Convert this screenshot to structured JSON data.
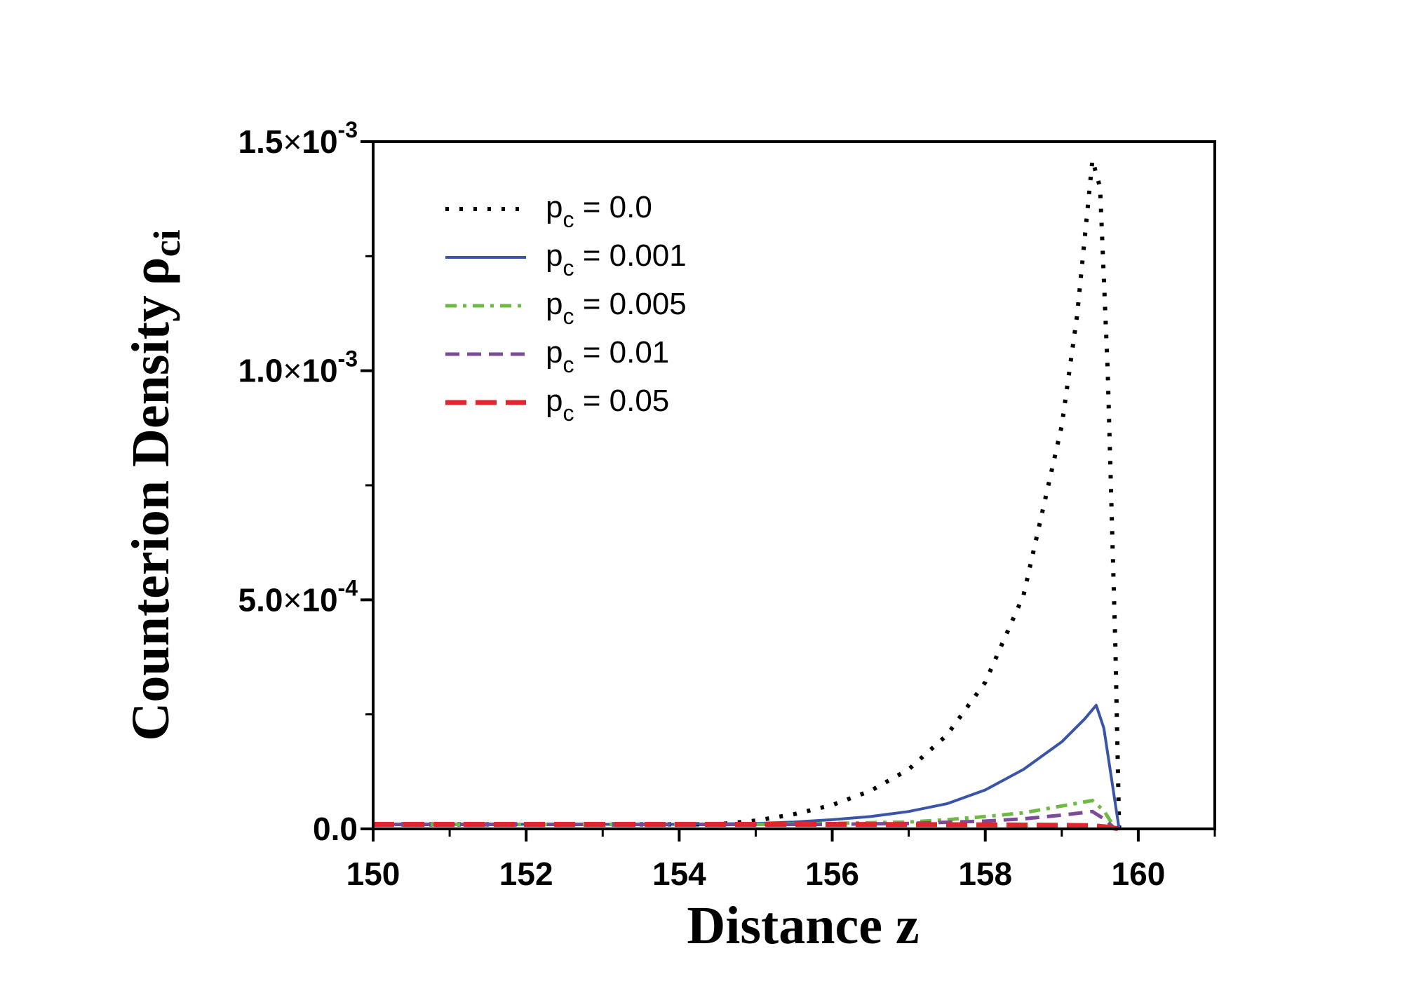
{
  "chart_data": {
    "type": "line",
    "xlabel": "Distance z",
    "ylabel": "Counterion Density",
    "ylabel_symbol": "ρ",
    "ylabel_sub": "ci",
    "xlim": [
      150,
      161
    ],
    "ylim": [
      0,
      0.0015
    ],
    "x_ticks": [
      150,
      152,
      154,
      156,
      158,
      160
    ],
    "x_tick_labels": [
      "150",
      "152",
      "154",
      "156",
      "158",
      "160"
    ],
    "y_ticks": [
      0,
      0.0005,
      0.001,
      0.0015
    ],
    "y_tick_labels": [
      {
        "mantissa": "0.0",
        "times": "",
        "base": "",
        "exp": ""
      },
      {
        "mantissa": "5.0",
        "times": "×",
        "base": "10",
        "exp": "-4"
      },
      {
        "mantissa": "1.0",
        "times": "×",
        "base": "10",
        "exp": "-3"
      },
      {
        "mantissa": "1.5",
        "times": "×",
        "base": "10",
        "exp": "-3"
      }
    ],
    "y_minor_step": 0.00025,
    "x_minor_step": 1,
    "grid": false,
    "legend_position": "top-left",
    "series": [
      {
        "name": "p_c = 0.0",
        "label_main": "p",
        "label_sub": "c",
        "label_rest": " = 0.0",
        "color": "#000000",
        "style": "dotted",
        "x": [
          150,
          151,
          152,
          153,
          154,
          154.5,
          155,
          155.5,
          156,
          156.5,
          157,
          157.5,
          158,
          158.5,
          159,
          159.2,
          159.4,
          159.5,
          159.6,
          159.7,
          159.75
        ],
        "y": [
          1e-05,
          1e-05,
          1e-05,
          1e-05,
          1e-05,
          1e-05,
          1.8e-05,
          3.2e-05,
          5.2e-05,
          8.3e-05,
          0.00013,
          0.000205,
          0.00032,
          0.00051,
          0.00088,
          0.00112,
          0.00146,
          0.0014,
          0.001,
          0.0004,
          0.0
        ]
      },
      {
        "name": "p_c = 0.001",
        "label_main": "p",
        "label_sub": "c",
        "label_rest": " = 0.001",
        "color": "#3a55a8",
        "style": "solid",
        "x": [
          150,
          151,
          152,
          153,
          154,
          155,
          155.5,
          156,
          156.5,
          157,
          157.5,
          158,
          158.5,
          159,
          159.3,
          159.45,
          159.55,
          159.65,
          159.75
        ],
        "y": [
          1e-05,
          1e-05,
          1e-05,
          1e-05,
          1e-05,
          1.2e-05,
          1.5e-05,
          2e-05,
          2.7e-05,
          3.8e-05,
          5.5e-05,
          8.5e-05,
          0.00013,
          0.00019,
          0.00024,
          0.00027,
          0.00022,
          0.00011,
          0.0
        ]
      },
      {
        "name": "p_c = 0.005",
        "label_main": "p",
        "label_sub": "c",
        "label_rest": " = 0.005",
        "color": "#6dbb45",
        "style": "dashdot",
        "x": [
          150,
          152,
          154,
          155,
          156,
          157,
          157.5,
          158,
          158.5,
          159,
          159.4,
          159.55,
          159.7
        ],
        "y": [
          1e-05,
          1e-05,
          1e-05,
          1e-05,
          1.2e-05,
          1.5e-05,
          2e-05,
          2.7e-05,
          3.5e-05,
          5e-05,
          6.2e-05,
          4e-05,
          0.0
        ]
      },
      {
        "name": "p_c = 0.01",
        "label_main": "p",
        "label_sub": "c",
        "label_rest": " = 0.01",
        "color": "#7b4b9a",
        "style": "dashed",
        "x": [
          150,
          152,
          154,
          156,
          157,
          158,
          158.5,
          159,
          159.4,
          159.55,
          159.7
        ],
        "y": [
          1e-05,
          1e-05,
          1e-05,
          1e-05,
          1.2e-05,
          1.7e-05,
          2.2e-05,
          3e-05,
          3.8e-05,
          2.2e-05,
          0.0
        ]
      },
      {
        "name": "p_c = 0.05",
        "label_main": "p",
        "label_sub": "c",
        "label_rest": " = 0.05",
        "color": "#e1262d",
        "style": "longdash",
        "x": [
          150,
          152,
          154,
          156,
          158,
          159,
          159.4,
          159.6,
          159.75
        ],
        "y": [
          1e-05,
          1e-05,
          1e-05,
          1e-05,
          9e-06,
          8e-06,
          7e-06,
          4e-06,
          0.0
        ]
      }
    ]
  }
}
